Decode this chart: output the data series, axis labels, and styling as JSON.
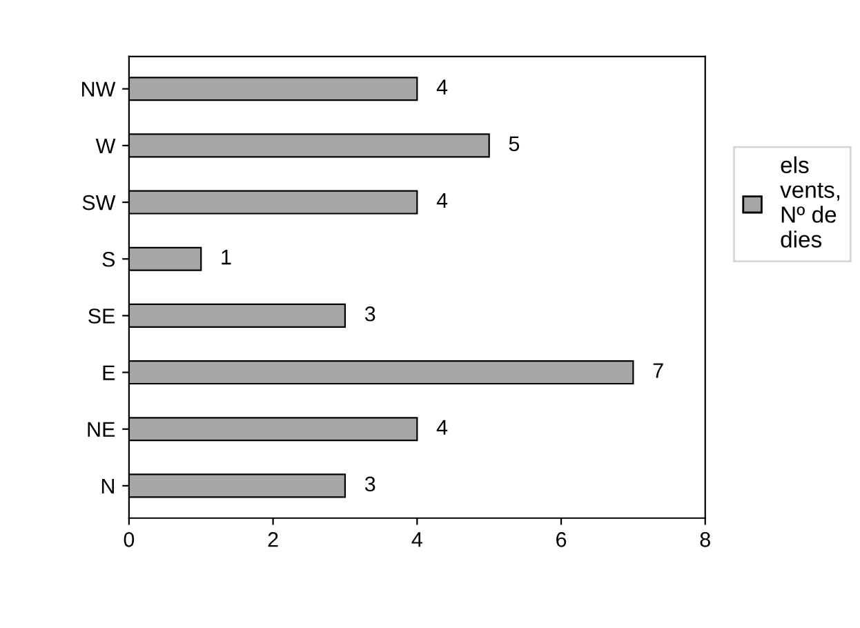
{
  "chart_data": {
    "type": "bar",
    "orientation": "horizontal",
    "categories": [
      "NW",
      "W",
      "SW",
      "S",
      "SE",
      "E",
      "NE",
      "N"
    ],
    "series": [
      {
        "name": "els\nvents,\nNº de\ndies",
        "color": "#a6a6a6",
        "values": [
          4,
          5,
          4,
          1,
          3,
          7,
          4,
          3
        ]
      }
    ],
    "xlim": [
      0,
      8
    ],
    "xticks": [
      0,
      2,
      4,
      6,
      8
    ],
    "data_labels": true,
    "legend": "right",
    "grid": false
  }
}
